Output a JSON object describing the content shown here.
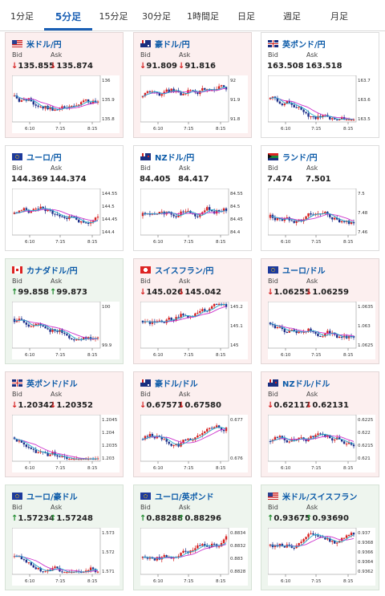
{
  "tabs": [
    "1分足",
    "5分足",
    "15分足",
    "30分足",
    "1時間足",
    "日足",
    "週足",
    "月足"
  ],
  "active_tab": 1,
  "labels": {
    "bid": "Bid",
    "ask": "Ask"
  },
  "colors": {
    "down_bg": "#fcefef",
    "up_bg": "#eef5ee",
    "down": "#d62020",
    "up": "#1f8a2e",
    "ma1": "#cc33cc",
    "ma2": "#22aacc"
  },
  "panels": [
    {
      "name": "米ドル/円",
      "flag": "us-flag-icon",
      "trend": "down",
      "bid": "135.855",
      "ask": "135.874",
      "xticks": [
        "6:10",
        "7:15",
        "8:15"
      ],
      "yticks": [
        "136",
        "135.9",
        "135.8"
      ]
    },
    {
      "name": "豪ドル/円",
      "flag": "au-flag-icon",
      "trend": "down",
      "bid": "91.809",
      "ask": "91.816",
      "xticks": [
        "6:10",
        "7:15",
        "8:15"
      ],
      "yticks": [
        "92",
        "91.9",
        "91.8"
      ]
    },
    {
      "name": "英ポンド/円",
      "flag": "gb-flag-icon",
      "trend": "none",
      "bid": "163.508",
      "ask": "163.518",
      "xticks": [
        "6:10",
        "7:15",
        "8:15"
      ],
      "yticks": [
        "163.7",
        "163.6",
        "163.5"
      ]
    },
    {
      "name": "ユーロ/円",
      "flag": "eu-flag-icon",
      "trend": "none",
      "bid": "144.369",
      "ask": "144.374",
      "xticks": [
        "6:10",
        "7:15",
        "8:15"
      ],
      "yticks": [
        "144.55",
        "144.5",
        "144.45",
        "144.4"
      ]
    },
    {
      "name": "NZドル/円",
      "flag": "nz-flag-icon",
      "trend": "none",
      "bid": "84.405",
      "ask": "84.417",
      "xticks": [
        "6:10",
        "7:15",
        "8:15"
      ],
      "yticks": [
        "84.55",
        "84.5",
        "84.45",
        "84.4"
      ]
    },
    {
      "name": "ランド/円",
      "flag": "za-flag-icon",
      "trend": "none",
      "bid": "7.474",
      "ask": "7.501",
      "xticks": [
        "6:10",
        "7:15",
        "8:15"
      ],
      "yticks": [
        "7.5",
        "7.48",
        "7.46"
      ]
    },
    {
      "name": "カナダドル/円",
      "flag": "ca-flag-icon",
      "trend": "up",
      "bid": "99.858",
      "ask": "99.873",
      "xticks": [
        "6:10",
        "7:15",
        "8:15"
      ],
      "yticks": [
        "100",
        "99.9"
      ]
    },
    {
      "name": "スイスフラン/円",
      "flag": "ch-flag-icon",
      "trend": "down",
      "bid": "145.026",
      "ask": "145.042",
      "xticks": [
        "6:10",
        "7:15",
        "8:15"
      ],
      "yticks": [
        "145.2",
        "145.1",
        "145"
      ]
    },
    {
      "name": "ユーロ/ドル",
      "flag": "eu-flag-icon",
      "trend": "down",
      "bid": "1.06255",
      "ask": "1.06259",
      "xticks": [
        "6:10",
        "7:15",
        "8:15"
      ],
      "yticks": [
        "1.0635",
        "1.063",
        "1.0625"
      ]
    },
    {
      "name": "英ポンド/ドル",
      "flag": "gb-flag-icon",
      "trend": "down",
      "bid": "1.20342",
      "ask": "1.20352",
      "xticks": [
        "6:10",
        "7:15",
        "8:15"
      ],
      "yticks": [
        "1.2045",
        "1.204",
        "1.2035",
        "1.203"
      ]
    },
    {
      "name": "豪ドル/ドル",
      "flag": "au-flag-icon",
      "trend": "down",
      "bid": "0.67571",
      "ask": "0.67580",
      "xticks": [
        "6:10",
        "7:15",
        "8:15"
      ],
      "yticks": [
        "0.677",
        "0.676"
      ]
    },
    {
      "name": "NZドル/ドル",
      "flag": "nz-flag-icon",
      "trend": "down",
      "bid": "0.62117",
      "ask": "0.62131",
      "xticks": [
        "6:10",
        "7:15",
        "8:15"
      ],
      "yticks": [
        "0.6225",
        "0.622",
        "0.6215",
        "0.621"
      ]
    },
    {
      "name": "ユーロ/豪ドル",
      "flag": "eu-flag-icon",
      "trend": "up",
      "bid": "1.57234",
      "ask": "1.57248",
      "xticks": [
        "6:10",
        "7:15",
        "8:15"
      ],
      "yticks": [
        "1.573",
        "1.572",
        "1.571"
      ]
    },
    {
      "name": "ユーロ/英ポンド",
      "flag": "eu-flag-icon",
      "trend": "up",
      "bid": "0.88288",
      "ask": "0.88296",
      "xticks": [
        "6:10",
        "7:15",
        "8:15"
      ],
      "yticks": [
        "0.8834",
        "0.8832",
        "0.883",
        "0.8828"
      ]
    },
    {
      "name": "米ドル/スイスフラン",
      "flag": "us-flag-icon",
      "trend": "up",
      "bid": "0.93675",
      "ask": "0.93690",
      "xticks": [
        "6:10",
        "7:15",
        "8:15"
      ],
      "yticks": [
        "0.937",
        "0.9368",
        "0.9366",
        "0.9364",
        "0.9362"
      ]
    }
  ]
}
